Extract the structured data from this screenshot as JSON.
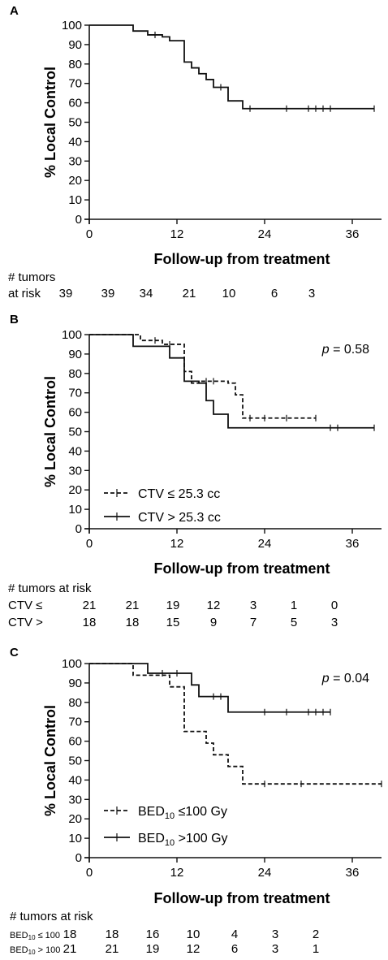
{
  "chart_data": [
    {
      "panel": "A",
      "type": "line",
      "xlabel": "Follow-up from treatment",
      "ylabel": "% Local  Control",
      "xlim": [
        0,
        40
      ],
      "ylim": [
        0,
        100
      ],
      "xticks": [
        0,
        12,
        24,
        36
      ],
      "yticks": [
        0,
        10,
        20,
        30,
        40,
        50,
        60,
        70,
        80,
        90,
        100
      ],
      "p_value": "",
      "series": [
        {
          "name": "",
          "style": "solid",
          "x": [
            0,
            6,
            8,
            10,
            11,
            13,
            14,
            15,
            16,
            17,
            19,
            21,
            39
          ],
          "y": [
            100,
            97,
            95,
            94,
            92,
            81,
            78,
            75,
            72,
            68,
            61,
            57,
            57
          ],
          "censored_x": [
            9,
            18,
            22,
            27,
            30,
            31,
            32,
            33,
            39
          ]
        }
      ],
      "risk_table": {
        "header_lines": [
          "# tumors",
          "at risk"
        ],
        "rows": [
          {
            "label": "",
            "values": [
              "39",
              "39",
              "34",
              "21",
              "10",
              "6",
              "3"
            ]
          }
        ]
      }
    },
    {
      "panel": "B",
      "type": "line",
      "xlabel": "Follow-up from treatment",
      "ylabel": "% Local  Control",
      "xlim": [
        0,
        40
      ],
      "ylim": [
        0,
        100
      ],
      "xticks": [
        0,
        12,
        24,
        36
      ],
      "yticks": [
        0,
        10,
        20,
        30,
        40,
        50,
        60,
        70,
        80,
        90,
        100
      ],
      "p_value": {
        "p": "p",
        "rest": " = 0.58"
      },
      "legend_position": "lower-left",
      "series": [
        {
          "name": "CTV ≤  25.3 cc",
          "style": "dashed",
          "x": [
            0,
            7,
            10,
            13,
            14,
            15,
            19,
            20,
            21,
            31
          ],
          "y": [
            100,
            97,
            95,
            81,
            75,
            76,
            75,
            69,
            57,
            57
          ],
          "censored_x": [
            9,
            11,
            16,
            17,
            22,
            24,
            27,
            31
          ]
        },
        {
          "name": "CTV > 25.3 cc",
          "style": "solid",
          "x": [
            0,
            6,
            11,
            13,
            15,
            16,
            17,
            19,
            39
          ],
          "y": [
            100,
            94,
            88,
            76,
            75,
            66,
            59,
            52,
            52
          ],
          "censored_x": [
            33,
            34,
            39
          ]
        }
      ],
      "risk_table": {
        "header_lines": [
          "# tumors at risk"
        ],
        "rows": [
          {
            "label": "CTV ≤",
            "values": [
              "21",
              "21",
              "19",
              "12",
              "3",
              "1",
              "0"
            ]
          },
          {
            "label": "CTV >",
            "values": [
              "18",
              "18",
              "15",
              "9",
              "7",
              "5",
              "3"
            ]
          }
        ]
      }
    },
    {
      "panel": "C",
      "type": "line",
      "xlabel": "Follow-up from treatment",
      "ylabel": "% Local  Control",
      "xlim": [
        0,
        40
      ],
      "ylim": [
        0,
        100
      ],
      "xticks": [
        0,
        12,
        24,
        36
      ],
      "yticks": [
        0,
        10,
        20,
        30,
        40,
        50,
        60,
        70,
        80,
        90,
        100
      ],
      "p_value": {
        "p": "p",
        "rest": " = 0.04"
      },
      "legend_position": "lower-left",
      "series": [
        {
          "name": "BED10 ≤100 Gy",
          "label_parts": {
            "main": "BED",
            "sub": "10",
            "rest": " ≤100 Gy"
          },
          "style": "dashed",
          "x": [
            0,
            6,
            11,
            13,
            16,
            17,
            18,
            19,
            20,
            21,
            40
          ],
          "y": [
            100,
            94,
            88,
            65,
            59,
            53,
            53,
            47,
            47,
            38,
            38
          ],
          "censored_x": [
            24,
            29,
            40
          ]
        },
        {
          "name": "BED10 >100 Gy",
          "label_parts": {
            "main": "BED",
            "sub": "10",
            "rest": " >100 Gy"
          },
          "style": "solid",
          "x": [
            0,
            8,
            14,
            15,
            19,
            33
          ],
          "y": [
            100,
            95,
            89,
            83,
            75,
            75
          ],
          "censored_x": [
            10,
            12,
            17,
            18,
            24,
            27,
            30,
            31,
            32,
            33
          ]
        }
      ],
      "risk_table": {
        "header_lines": [
          "# tumors at risk"
        ],
        "rows": [
          {
            "label": "BED10 ≤ 100",
            "label_main": "BED",
            "label_sub": "10",
            "label_rest": " ≤ 100",
            "values": [
              "18",
              "18",
              "16",
              "10",
              "4",
              "3",
              "2"
            ]
          },
          {
            "label": "BED10 > 100",
            "label_main": "BED",
            "label_sub": "10",
            "label_rest": " > 100",
            "values": [
              "21",
              "21",
              "19",
              "12",
              "6",
              "3",
              "1"
            ]
          }
        ]
      }
    }
  ]
}
